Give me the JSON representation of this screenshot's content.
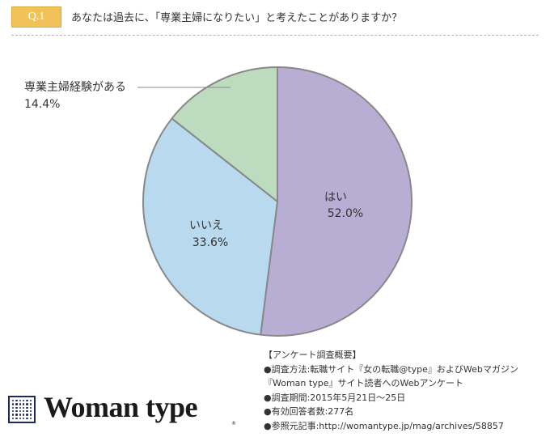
{
  "header": {
    "q_label": "Q.1",
    "question": "あなたは過去に、「専業主婦になりたい」と考えたことがありますか？"
  },
  "chart_data": {
    "type": "pie",
    "slices": [
      {
        "label": "はい",
        "value": 52.0,
        "value_text": "52.0%",
        "color": "#b8aed3"
      },
      {
        "label": "いいえ",
        "value": 33.6,
        "value_text": "33.6%",
        "color": "#b8d9ee"
      },
      {
        "label": "専業主婦経験がある",
        "value": 14.4,
        "value_text": "14.4%",
        "color": "#bcdbbf"
      }
    ],
    "start_angle_deg": 0,
    "direction": "clockwise",
    "outline_color": "#888888"
  },
  "survey": {
    "lines": [
      "【アンケート調査概要】",
      "●調査方法:転職サイト『女の転職@type』およびWebマガジン",
      "『Woman type』サイト読者へのWebアンケート",
      "●調査期間:2015年5月21日～25日",
      "●有効回答者数:277名",
      "●参照元記事:http://womantype.jp/mag/archives/58857"
    ]
  },
  "logo": {
    "text": "Woman type",
    "mark": "®"
  }
}
